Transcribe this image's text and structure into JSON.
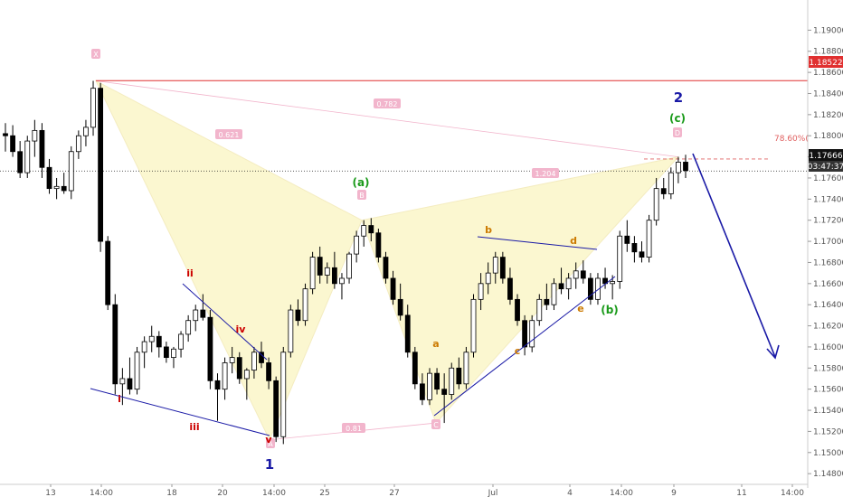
{
  "colors": {
    "up_candle": "#ffffff",
    "down_candle": "#000000",
    "candle_outline": "#000000",
    "pattern_fill": "#fbf7d0",
    "pattern_edge": "#f4ecc0",
    "wave_blue": "#1a1aa6",
    "wave_red": "#cc0000",
    "wave_green": "#1a9a1a",
    "wave_orange": "#cc7a00",
    "pink": "#f2b5cc",
    "red_line": "#e03030",
    "pct_text": "#e06060"
  },
  "chart_data": {
    "type": "candlestick",
    "ylim": [
      1.1475,
      1.192
    ],
    "y_ticks": [
      "1.19000",
      "1.18800",
      "1.18600",
      "1.18400",
      "1.18200",
      "1.18000",
      "1.17800",
      "1.17600",
      "1.17400",
      "1.17200",
      "1.17000",
      "1.16800",
      "1.16600",
      "1.16400",
      "1.16200",
      "1.16000",
      "1.15800",
      "1.15600",
      "1.15400",
      "1.15200",
      "1.15000",
      "1.14800"
    ],
    "x_ticks": [
      "13",
      "14:00",
      "18",
      "20",
      "14:00",
      "25",
      "27",
      "Jul",
      "4",
      "14:00",
      "9",
      "11",
      "14:00"
    ],
    "candles": [
      [
        1.1802,
        1.1812,
        1.1785,
        1.18
      ],
      [
        1.18,
        1.181,
        1.178,
        1.1785
      ],
      [
        1.1785,
        1.1795,
        1.176,
        1.1765
      ],
      [
        1.1765,
        1.18,
        1.176,
        1.1795
      ],
      [
        1.1795,
        1.1815,
        1.178,
        1.1805
      ],
      [
        1.1805,
        1.1812,
        1.176,
        1.177
      ],
      [
        1.177,
        1.1778,
        1.1745,
        1.175
      ],
      [
        1.175,
        1.176,
        1.174,
        1.1752
      ],
      [
        1.1752,
        1.1765,
        1.1745,
        1.1748
      ],
      [
        1.1748,
        1.179,
        1.174,
        1.1785
      ],
      [
        1.1785,
        1.1805,
        1.1778,
        1.18
      ],
      [
        1.18,
        1.1815,
        1.179,
        1.1808
      ],
      [
        1.1808,
        1.1852,
        1.18,
        1.1845
      ],
      [
        1.1845,
        1.185,
        1.169,
        1.17
      ],
      [
        1.17,
        1.1705,
        1.1635,
        1.164
      ],
      [
        1.164,
        1.165,
        1.1555,
        1.1565
      ],
      [
        1.1565,
        1.158,
        1.1545,
        1.157
      ],
      [
        1.157,
        1.159,
        1.1555,
        1.156
      ],
      [
        1.156,
        1.16,
        1.1555,
        1.1595
      ],
      [
        1.1595,
        1.161,
        1.158,
        1.1605
      ],
      [
        1.1605,
        1.162,
        1.1595,
        1.161
      ],
      [
        1.161,
        1.1615,
        1.159,
        1.16
      ],
      [
        1.16,
        1.1605,
        1.1585,
        1.159
      ],
      [
        1.159,
        1.16,
        1.158,
        1.1598
      ],
      [
        1.1598,
        1.1615,
        1.159,
        1.1612
      ],
      [
        1.1612,
        1.163,
        1.1605,
        1.1625
      ],
      [
        1.1625,
        1.164,
        1.1615,
        1.1635
      ],
      [
        1.1635,
        1.165,
        1.1625,
        1.1628
      ],
      [
        1.1628,
        1.1635,
        1.156,
        1.1568
      ],
      [
        1.1568,
        1.1575,
        1.153,
        1.156
      ],
      [
        1.156,
        1.159,
        1.155,
        1.1585
      ],
      [
        1.1585,
        1.16,
        1.1575,
        1.159
      ],
      [
        1.159,
        1.1595,
        1.1565,
        1.157
      ],
      [
        1.157,
        1.158,
        1.155,
        1.1578
      ],
      [
        1.1578,
        1.16,
        1.157,
        1.1595
      ],
      [
        1.1595,
        1.1605,
        1.158,
        1.1585
      ],
      [
        1.1585,
        1.159,
        1.156,
        1.1568
      ],
      [
        1.1568,
        1.1572,
        1.151,
        1.1515
      ],
      [
        1.1515,
        1.16,
        1.1508,
        1.1595
      ],
      [
        1.1595,
        1.164,
        1.159,
        1.1635
      ],
      [
        1.1635,
        1.1645,
        1.162,
        1.1625
      ],
      [
        1.1625,
        1.166,
        1.162,
        1.1655
      ],
      [
        1.1655,
        1.169,
        1.165,
        1.1685
      ],
      [
        1.1685,
        1.1695,
        1.166,
        1.1668
      ],
      [
        1.1668,
        1.168,
        1.166,
        1.1675
      ],
      [
        1.1675,
        1.169,
        1.1655,
        1.166
      ],
      [
        1.166,
        1.167,
        1.1645,
        1.1665
      ],
      [
        1.1665,
        1.169,
        1.166,
        1.1688
      ],
      [
        1.1688,
        1.171,
        1.168,
        1.1705
      ],
      [
        1.1705,
        1.172,
        1.1695,
        1.1715
      ],
      [
        1.1715,
        1.1722,
        1.17,
        1.1708
      ],
      [
        1.1708,
        1.1712,
        1.168,
        1.1685
      ],
      [
        1.1685,
        1.169,
        1.166,
        1.1665
      ],
      [
        1.1665,
        1.1672,
        1.164,
        1.1645
      ],
      [
        1.1645,
        1.166,
        1.1625,
        1.163
      ],
      [
        1.163,
        1.164,
        1.159,
        1.1595
      ],
      [
        1.1595,
        1.16,
        1.156,
        1.1565
      ],
      [
        1.1565,
        1.1575,
        1.1545,
        1.155
      ],
      [
        1.155,
        1.158,
        1.1545,
        1.1575
      ],
      [
        1.1575,
        1.158,
        1.1555,
        1.156
      ],
      [
        1.156,
        1.1575,
        1.1528,
        1.1555
      ],
      [
        1.1555,
        1.1585,
        1.155,
        1.158
      ],
      [
        1.158,
        1.159,
        1.156,
        1.1565
      ],
      [
        1.1565,
        1.16,
        1.156,
        1.1595
      ],
      [
        1.1595,
        1.165,
        1.159,
        1.1645
      ],
      [
        1.1645,
        1.167,
        1.1635,
        1.166
      ],
      [
        1.166,
        1.168,
        1.165,
        1.167
      ],
      [
        1.167,
        1.169,
        1.166,
        1.1685
      ],
      [
        1.1685,
        1.169,
        1.166,
        1.1665
      ],
      [
        1.1665,
        1.1675,
        1.164,
        1.1645
      ],
      [
        1.1645,
        1.165,
        1.162,
        1.1625
      ],
      [
        1.1625,
        1.163,
        1.1592,
        1.16
      ],
      [
        1.16,
        1.163,
        1.1595,
        1.1625
      ],
      [
        1.1625,
        1.165,
        1.162,
        1.1645
      ],
      [
        1.1645,
        1.166,
        1.1635,
        1.164
      ],
      [
        1.164,
        1.1665,
        1.1635,
        1.166
      ],
      [
        1.166,
        1.1675,
        1.165,
        1.1655
      ],
      [
        1.1655,
        1.167,
        1.1645,
        1.1665
      ],
      [
        1.1665,
        1.168,
        1.1655,
        1.1672
      ],
      [
        1.1672,
        1.1682,
        1.166,
        1.1665
      ],
      [
        1.1665,
        1.167,
        1.164,
        1.1645
      ],
      [
        1.1645,
        1.167,
        1.164,
        1.1665
      ],
      [
        1.1665,
        1.1675,
        1.1655,
        1.166
      ],
      [
        1.166,
        1.1668,
        1.1645,
        1.1662
      ],
      [
        1.1662,
        1.171,
        1.1655,
        1.1705
      ],
      [
        1.1705,
        1.172,
        1.169,
        1.1698
      ],
      [
        1.1698,
        1.1705,
        1.168,
        1.169
      ],
      [
        1.169,
        1.17,
        1.168,
        1.1685
      ],
      [
        1.1685,
        1.1725,
        1.168,
        1.172
      ],
      [
        1.172,
        1.176,
        1.1715,
        1.175
      ],
      [
        1.175,
        1.176,
        1.174,
        1.1745
      ],
      [
        1.1745,
        1.177,
        1.174,
        1.1765
      ],
      [
        1.1765,
        1.178,
        1.1755,
        1.1775
      ],
      [
        1.1775,
        1.1782,
        1.176,
        1.1767
      ]
    ]
  },
  "price_axis": {
    "red_level_label": "1.18522",
    "current_price_label": "1.17666",
    "countdown_label": "03:47:37"
  },
  "annotations": {
    "wave_1": "1",
    "wave_2": "2",
    "sub_i": "i",
    "sub_ii": "ii",
    "sub_iii": "iii",
    "sub_iv": "iv",
    "sub_v": "v",
    "sub_a_paren": "(a)",
    "sub_b_paren": "(b)",
    "sub_c_paren": "(c)",
    "sub_a": "a",
    "sub_b": "b",
    "sub_c": "c",
    "sub_d": "d",
    "sub_e": "e",
    "retracement_pct": "78.60%(",
    "ratio_xb": "0.621",
    "ratio_xd": "0.782",
    "ratio_bd": "1.204",
    "ratio_ac": "0.81",
    "point_x": "X",
    "point_a": "A",
    "point_b": "B",
    "point_c": "C",
    "point_d": "D"
  }
}
